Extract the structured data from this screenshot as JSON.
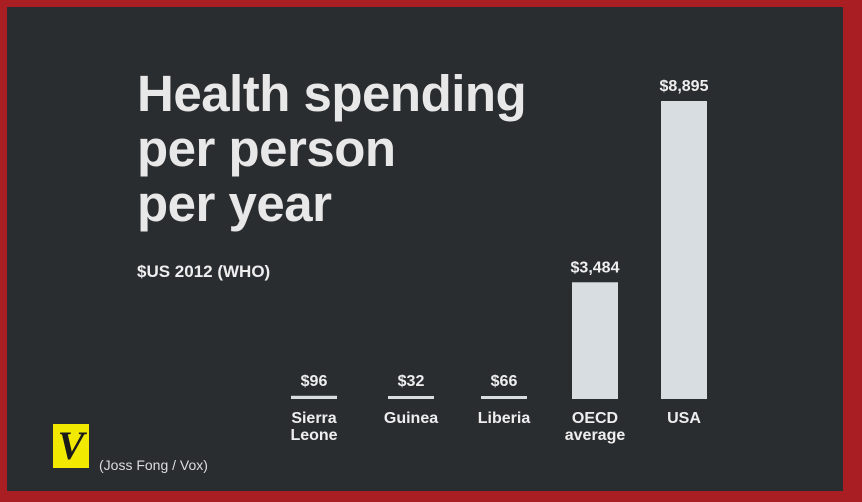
{
  "chart_data": {
    "type": "bar",
    "title_lines": [
      "Health spending",
      "per person",
      "per year"
    ],
    "subtitle": "$US 2012 (WHO)",
    "categories": [
      [
        "Sierra",
        "Leone"
      ],
      [
        "Guinea"
      ],
      [
        "Liberia"
      ],
      [
        "OECD",
        "average"
      ],
      [
        "USA"
      ]
    ],
    "values": [
      96,
      32,
      66,
      3484,
      8895
    ],
    "value_labels": [
      "$96",
      "$32",
      "$66",
      "$3,484",
      "$8,895"
    ],
    "ylim": [
      0,
      8895
    ],
    "grid": false,
    "bar_color": "#d8dde2"
  },
  "credit": "(Joss Fong / Vox)",
  "logo": {
    "letter": "V",
    "color": "#f2e900"
  },
  "colors": {
    "frame": "#a81e22",
    "background": "#2a2d30",
    "text": "#e8e8e8"
  }
}
